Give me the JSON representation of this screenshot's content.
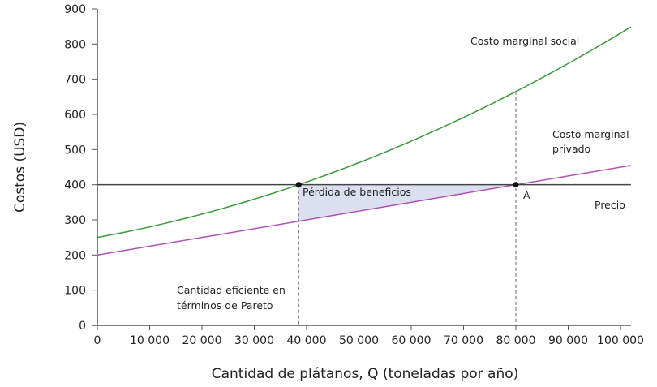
{
  "chart_data": {
    "type": "line",
    "xlabel": "Cantidad de plátanos, Q (toneladas por año)",
    "ylabel": "Costos (USD)",
    "xlim": [
      0,
      102000
    ],
    "ylim": [
      0,
      900
    ],
    "grid": false,
    "x_ticks": [
      "0",
      "10 000",
      "20 000",
      "30 000",
      "40 000",
      "50 000",
      "60 000",
      "70 000",
      "80 000",
      "90 000",
      "100 000"
    ],
    "x_tick_values": [
      0,
      10000,
      20000,
      30000,
      40000,
      50000,
      60000,
      70000,
      80000,
      90000,
      100000
    ],
    "y_ticks": [
      "0",
      "100",
      "200",
      "300",
      "400",
      "500",
      "600",
      "700",
      "800",
      "900"
    ],
    "y_tick_values": [
      0,
      100,
      200,
      300,
      400,
      500,
      600,
      700,
      800,
      900
    ],
    "series": [
      {
        "name": "Costo marginal social",
        "color": "#3a9a3a",
        "x": [
          0,
          10000,
          20000,
          30000,
          38500,
          50000,
          60000,
          70000,
          80000,
          90000,
          102000
        ],
        "y": [
          250,
          280,
          316,
          359,
          400,
          462,
          524,
          592,
          665,
          745,
          850
        ]
      },
      {
        "name": "Costo marginal privado",
        "color": "#b04fb8",
        "x": [
          0,
          102000
        ],
        "y": [
          200,
          455
        ]
      },
      {
        "name": "Precio",
        "color": "#444444",
        "x": [
          0,
          102000
        ],
        "y": [
          400,
          400
        ]
      }
    ],
    "points": [
      {
        "label": "",
        "x": 38500,
        "y": 400
      },
      {
        "label": "A",
        "x": 80000,
        "y": 400
      }
    ],
    "shaded_area": {
      "label": "Pérdida de beneficios",
      "color": "#dcdff0",
      "x_from": 38500,
      "x_to": 80000
    },
    "annotations": {
      "social_label_line1": "Costo marginal social",
      "private_label_line1": "Costo marginal",
      "private_label_line2": "privado",
      "price_label": "Precio",
      "pareto_line1": "Cantidad eficiente en",
      "pareto_line2": "términos de Pareto"
    }
  }
}
